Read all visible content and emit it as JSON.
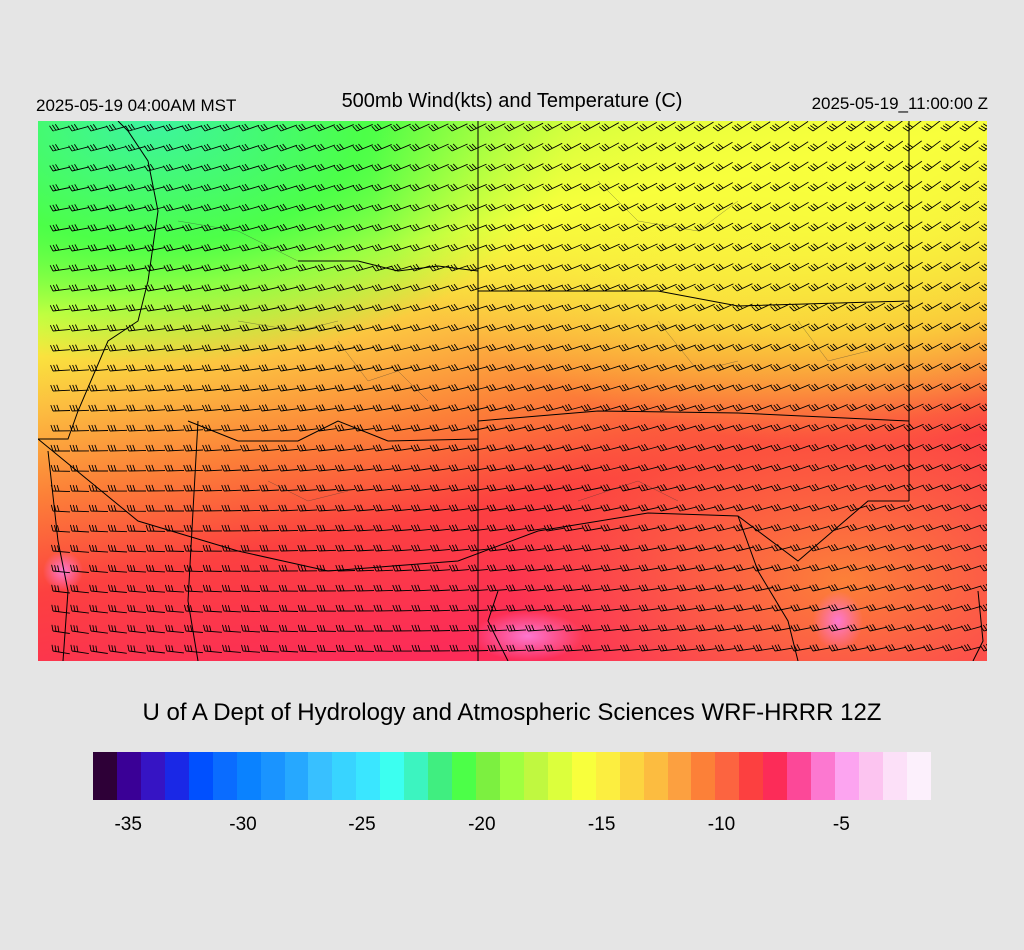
{
  "header": {
    "valid_local": "2025-05-19 04:00AM MST",
    "title": "500mb Wind(kts) and Temperature (C)",
    "valid_utc": "2025-05-19_11:00:00 Z"
  },
  "credit": "U of A Dept of Hydrology and Atmospheric Sciences WRF-HRRR 12Z",
  "legend": {
    "colors": [
      "#2e0037",
      "#3a0096",
      "#3614c4",
      "#1a28e6",
      "#0050ff",
      "#0a6cff",
      "#0a82ff",
      "#1a94ff",
      "#26a8ff",
      "#38c0ff",
      "#38d4ff",
      "#3ae6ff",
      "#3cfff0",
      "#3cf4c0",
      "#40ee80",
      "#4cff48",
      "#7cf040",
      "#a0ff40",
      "#c0f840",
      "#dcff3c",
      "#f8ff3c",
      "#fcee40",
      "#fcd440",
      "#fcbc40",
      "#fca040",
      "#fc8038",
      "#fc6440",
      "#fc4040",
      "#fc2c58",
      "#fc4898",
      "#fc78d0",
      "#fca4f0",
      "#fcc4f0",
      "#fce0f8",
      "#fcf0fc"
    ],
    "ticks": [
      {
        "label": "-35",
        "t": 0.042
      },
      {
        "label": "-30",
        "t": 0.179
      },
      {
        "label": "-25",
        "t": 0.321
      },
      {
        "label": "-20",
        "t": 0.464
      },
      {
        "label": "-15",
        "t": 0.607
      },
      {
        "label": "-10",
        "t": 0.75
      },
      {
        "label": "-5",
        "t": 0.893
      }
    ]
  }
}
